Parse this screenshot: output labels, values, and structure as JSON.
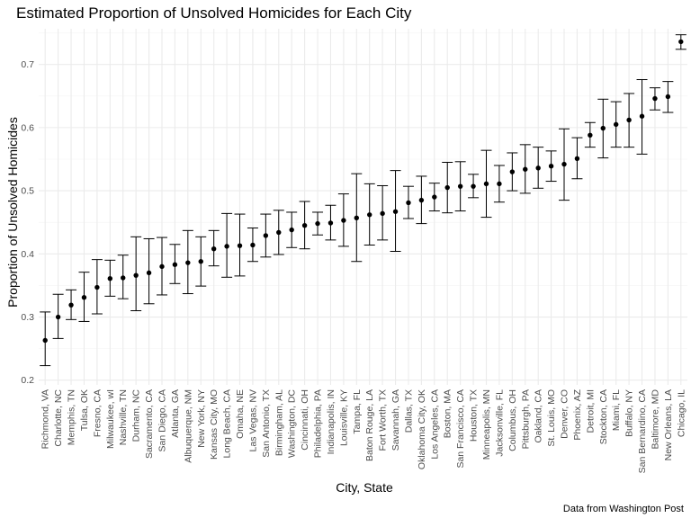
{
  "chart_data": {
    "type": "scatter",
    "title": "Estimated Proportion of Unsolved Homicides for Each City",
    "xlabel": "City, State",
    "ylabel": "Proportion of Unsolved Homicides",
    "caption": "Data from Washington Post",
    "ylim": [
      0.2,
      0.75
    ],
    "yticks": [
      0.2,
      0.3,
      0.4,
      0.5,
      0.6,
      0.7
    ],
    "grid": true,
    "legend": "none",
    "error_bars": true,
    "categories": [
      "Richmond, VA",
      "Charlotte, NC",
      "Memphis, TN",
      "Tulsa, OK",
      "Fresno, CA",
      "Milwaukee, wI",
      "Nashville, TN",
      "Durham, NC",
      "Sacramento, CA",
      "San Diego, CA",
      "Atlanta, GA",
      "Albuquerque, NM",
      "New York, NY",
      "Kansas City, MO",
      "Long Beach, CA",
      "Omaha, NE",
      "Las Vegas, NV",
      "San Antonio, TX",
      "Birmingham, AL",
      "Washington, DC",
      "Cincinnati, OH",
      "Philadelphia, PA",
      "Indianapolis, IN",
      "Louisville, KY",
      "Tampa, FL",
      "Baton Rouge, LA",
      "Fort Worth, TX",
      "Savannah, GA",
      "Dallas, TX",
      "Oklahoma City, OK",
      "Los Angeles, CA",
      "Boston, MA",
      "San Francisco, CA",
      "Houston, TX",
      "Minneapolis, MN",
      "Jacksonville, FL",
      "Columbus, OH",
      "Pittsburgh, PA",
      "Oakland, CA",
      "St. Louis, MO",
      "Denver, CO",
      "Phoenix, AZ",
      "Detroit, MI",
      "Stockton, CA",
      "Miami, FL",
      "Buffalo, NY",
      "San Bernardino, CA",
      "Baltimore, MD",
      "New Orleans, LA",
      "Chicago, IL"
    ],
    "estimate": [
      0.263,
      0.3,
      0.319,
      0.331,
      0.347,
      0.361,
      0.362,
      0.366,
      0.37,
      0.38,
      0.383,
      0.386,
      0.388,
      0.408,
      0.412,
      0.413,
      0.414,
      0.429,
      0.434,
      0.438,
      0.445,
      0.448,
      0.449,
      0.453,
      0.457,
      0.462,
      0.464,
      0.467,
      0.481,
      0.485,
      0.49,
      0.505,
      0.507,
      0.507,
      0.511,
      0.511,
      0.53,
      0.534,
      0.536,
      0.539,
      0.542,
      0.551,
      0.588,
      0.599,
      0.605,
      0.612,
      0.618,
      0.646,
      0.649,
      0.736
    ],
    "lower": [
      0.223,
      0.266,
      0.296,
      0.293,
      0.305,
      0.333,
      0.329,
      0.31,
      0.321,
      0.335,
      0.353,
      0.337,
      0.349,
      0.381,
      0.363,
      0.365,
      0.388,
      0.395,
      0.399,
      0.41,
      0.408,
      0.43,
      0.422,
      0.412,
      0.388,
      0.414,
      0.422,
      0.404,
      0.456,
      0.448,
      0.468,
      0.465,
      0.468,
      0.489,
      0.458,
      0.482,
      0.5,
      0.496,
      0.504,
      0.515,
      0.485,
      0.519,
      0.569,
      0.552,
      0.569,
      0.569,
      0.558,
      0.628,
      0.624,
      0.724
    ],
    "upper": [
      0.308,
      0.336,
      0.343,
      0.371,
      0.391,
      0.39,
      0.398,
      0.427,
      0.424,
      0.426,
      0.415,
      0.437,
      0.427,
      0.437,
      0.464,
      0.463,
      0.441,
      0.463,
      0.469,
      0.466,
      0.483,
      0.466,
      0.477,
      0.495,
      0.527,
      0.511,
      0.508,
      0.532,
      0.507,
      0.523,
      0.512,
      0.545,
      0.546,
      0.526,
      0.564,
      0.54,
      0.56,
      0.573,
      0.569,
      0.563,
      0.598,
      0.584,
      0.608,
      0.645,
      0.641,
      0.654,
      0.676,
      0.663,
      0.673,
      0.747
    ]
  }
}
